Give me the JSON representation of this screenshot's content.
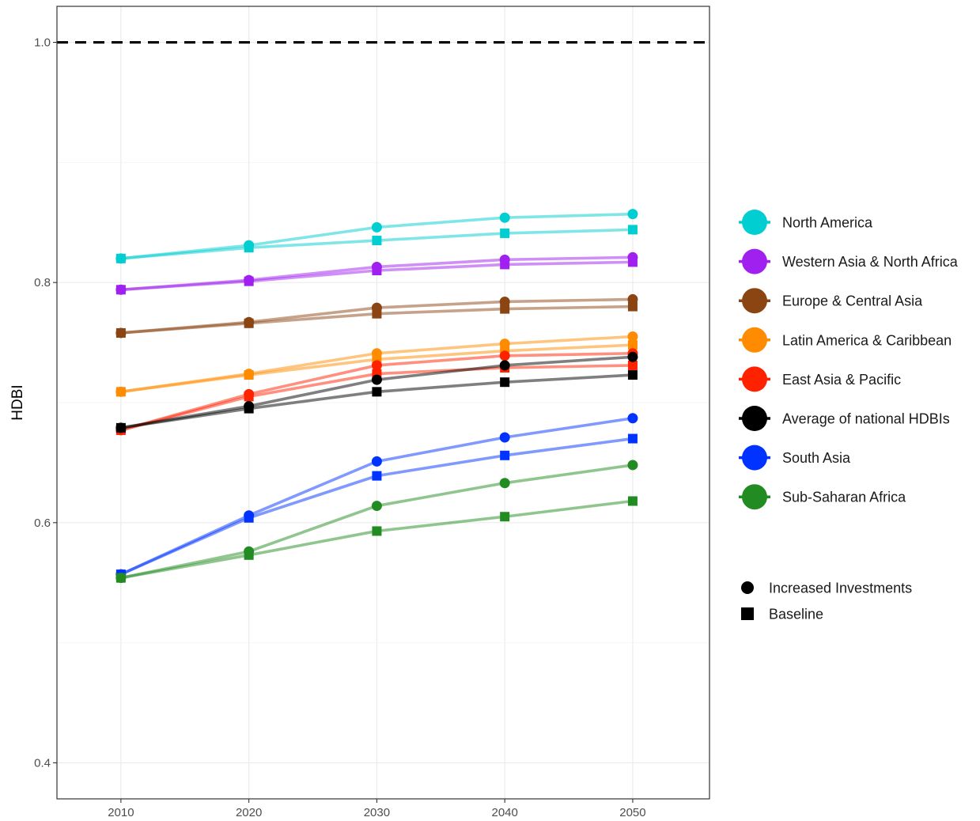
{
  "chart_data": {
    "type": "line",
    "title": "",
    "xlabel": "",
    "ylabel": "HDBI",
    "x": [
      2010,
      2020,
      2030,
      2040,
      2050
    ],
    "xlim": [
      2005,
      2056
    ],
    "ylim": [
      0.37,
      1.03
    ],
    "xticks": [
      2010,
      2020,
      2030,
      2040,
      2050
    ],
    "yticks": [
      0.4,
      0.6,
      0.8,
      1.0
    ],
    "ytick_labels": [
      "0.4",
      "0.6",
      "0.8",
      "1.0"
    ],
    "grid": true,
    "reference_line": {
      "y": 1.0,
      "style": "dashed",
      "color": "#000000"
    },
    "legend_position": "right",
    "scenarios": [
      {
        "name": "Increased Investments",
        "marker": "circle"
      },
      {
        "name": "Baseline",
        "marker": "square"
      }
    ],
    "series": [
      {
        "name": "North America",
        "color": "#00CED1",
        "increased": [
          0.82,
          0.831,
          0.846,
          0.854,
          0.857
        ],
        "baseline": [
          0.82,
          0.829,
          0.835,
          0.841,
          0.844
        ]
      },
      {
        "name": "Western Asia & North Africa",
        "color": "#A020F0",
        "increased": [
          0.794,
          0.802,
          0.813,
          0.819,
          0.821
        ],
        "baseline": [
          0.794,
          0.801,
          0.81,
          0.815,
          0.817
        ]
      },
      {
        "name": "Europe & Central Asia",
        "color": "#8B4513",
        "increased": [
          0.758,
          0.767,
          0.779,
          0.784,
          0.786
        ],
        "baseline": [
          0.758,
          0.766,
          0.774,
          0.778,
          0.78
        ]
      },
      {
        "name": "Latin America & Caribbean",
        "color": "#FF8C00",
        "increased": [
          0.709,
          0.724,
          0.741,
          0.749,
          0.755
        ],
        "baseline": [
          0.709,
          0.723,
          0.736,
          0.743,
          0.748
        ]
      },
      {
        "name": "East Asia & Pacific",
        "color": "#FF2200",
        "increased": [
          0.677,
          0.707,
          0.731,
          0.739,
          0.741
        ],
        "baseline": [
          0.677,
          0.705,
          0.724,
          0.729,
          0.731
        ]
      },
      {
        "name": "Average of national HDBIs",
        "color": "#000000",
        "increased": [
          0.679,
          0.697,
          0.719,
          0.731,
          0.738
        ],
        "baseline": [
          0.679,
          0.695,
          0.709,
          0.717,
          0.723
        ]
      },
      {
        "name": "South Asia",
        "color": "#0033FF",
        "increased": [
          0.557,
          0.606,
          0.651,
          0.671,
          0.687
        ],
        "baseline": [
          0.557,
          0.604,
          0.639,
          0.656,
          0.67
        ]
      },
      {
        "name": "Sub-Saharan Africa",
        "color": "#228B22",
        "increased": [
          0.554,
          0.576,
          0.614,
          0.633,
          0.648
        ],
        "baseline": [
          0.554,
          0.573,
          0.593,
          0.605,
          0.618
        ]
      }
    ]
  }
}
